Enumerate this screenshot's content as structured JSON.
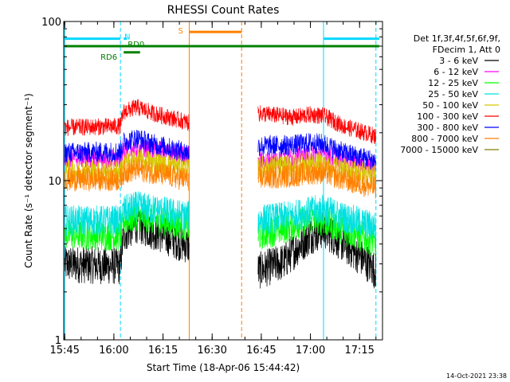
{
  "chart_data": {
    "type": "line",
    "title": "RHESSI Count Rates",
    "xlabel": "Start Time (18-Apr-06 15:44:42)",
    "ylabel": "Count Rate (s⁻¹ detector segment⁻¹)",
    "y_scale": "log",
    "ylim": [
      1,
      100
    ],
    "xlim": [
      "15:44:42",
      "17:22"
    ],
    "x_ticks": [
      "15:45",
      "16:00",
      "16:15",
      "16:30",
      "16:45",
      "17:00",
      "17:15"
    ],
    "y_ticks": [
      {
        "value": 1,
        "label": "1"
      },
      {
        "value": 10,
        "label": "10"
      },
      {
        "value": 100,
        "label": "100"
      }
    ],
    "grid": false,
    "legend_position": "right",
    "legend_header": [
      "Det 1f,3f,4f,5f,6f,9f,",
      "FDecim 1, Att 0"
    ],
    "data_gap": [
      "16:23",
      "16:44"
    ],
    "series": [
      {
        "name": "3 - 6 keV",
        "color": "#000000",
        "noise": 0.55,
        "points": [
          [
            "15:45",
            3.0
          ],
          [
            "16:02",
            2.9
          ],
          [
            "16:03",
            4.6
          ],
          [
            "16:07",
            5.3
          ],
          [
            "16:12",
            4.8
          ],
          [
            "16:20",
            4.1
          ],
          [
            "16:23",
            3.9
          ],
          [
            "16:44",
            2.7
          ],
          [
            "16:52",
            3.1
          ],
          [
            "17:00",
            4.5
          ],
          [
            "17:04",
            4.9
          ],
          [
            "17:10",
            4.0
          ],
          [
            "17:20",
            2.7
          ]
        ]
      },
      {
        "name": "6 - 12 keV",
        "color": "#ff00ff",
        "noise": 0.3,
        "points": [
          [
            "15:45",
            14.0
          ],
          [
            "16:02",
            13.5
          ],
          [
            "16:03",
            15.5
          ],
          [
            "16:07",
            16.0
          ],
          [
            "16:12",
            15.5
          ],
          [
            "16:20",
            14.5
          ],
          [
            "16:23",
            14.3
          ],
          [
            "16:44",
            13.2
          ],
          [
            "16:55",
            14.0
          ],
          [
            "17:00",
            14.5
          ],
          [
            "17:04",
            14.8
          ],
          [
            "17:10",
            13.5
          ],
          [
            "17:20",
            12.0
          ]
        ]
      },
      {
        "name": "12 - 25 keV",
        "color": "#00ff00",
        "noise": 0.45,
        "points": [
          [
            "15:45",
            4.6
          ],
          [
            "16:02",
            4.5
          ],
          [
            "16:03",
            5.6
          ],
          [
            "16:07",
            6.0
          ],
          [
            "16:12",
            5.7
          ],
          [
            "16:20",
            5.3
          ],
          [
            "16:23",
            5.1
          ],
          [
            "16:44",
            4.5
          ],
          [
            "16:52",
            5.0
          ],
          [
            "17:00",
            5.7
          ],
          [
            "17:04",
            5.6
          ],
          [
            "17:10",
            4.9
          ],
          [
            "17:20",
            4.1
          ]
        ]
      },
      {
        "name": "25 - 50 keV",
        "color": "#00e0e0",
        "noise": 0.45,
        "points": [
          [
            "15:45",
            5.6
          ],
          [
            "16:02",
            5.6
          ],
          [
            "16:03",
            6.5
          ],
          [
            "16:07",
            6.9
          ],
          [
            "16:12",
            6.6
          ],
          [
            "16:20",
            6.1
          ],
          [
            "16:23",
            6.0
          ],
          [
            "16:44",
            5.7
          ],
          [
            "16:52",
            5.9
          ],
          [
            "17:00",
            6.4
          ],
          [
            "17:04",
            6.6
          ],
          [
            "17:10",
            5.9
          ],
          [
            "17:20",
            5.1
          ]
        ]
      },
      {
        "name": "50 - 100 keV",
        "color": "#d8c800",
        "noise": 0.35,
        "points": [
          [
            "15:45",
            11.5
          ],
          [
            "16:02",
            11.5
          ],
          [
            "16:03",
            12.8
          ],
          [
            "16:07",
            13.5
          ],
          [
            "16:12",
            13.0
          ],
          [
            "16:20",
            12.3
          ],
          [
            "16:23",
            12.0
          ],
          [
            "16:44",
            12.0
          ],
          [
            "16:55",
            12.4
          ],
          [
            "17:00",
            12.8
          ],
          [
            "17:04",
            12.8
          ],
          [
            "17:10",
            11.8
          ],
          [
            "17:20",
            10.8
          ]
        ]
      },
      {
        "name": "100 - 300 keV",
        "color": "#ff0000",
        "noise": 0.25,
        "points": [
          [
            "15:45",
            21.5
          ],
          [
            "16:02",
            22.0
          ],
          [
            "16:03",
            27.0
          ],
          [
            "16:07",
            29.0
          ],
          [
            "16:12",
            26.5
          ],
          [
            "16:20",
            24.0
          ],
          [
            "16:23",
            23.0
          ],
          [
            "16:44",
            26.5
          ],
          [
            "16:55",
            25.0
          ],
          [
            "17:00",
            26.0
          ],
          [
            "17:04",
            25.5
          ],
          [
            "17:10",
            22.0
          ],
          [
            "17:20",
            19.0
          ]
        ]
      },
      {
        "name": "300 - 800 keV",
        "color": "#0000ff",
        "noise": 0.3,
        "points": [
          [
            "15:45",
            15.0
          ],
          [
            "16:02",
            15.2
          ],
          [
            "16:03",
            17.5
          ],
          [
            "16:07",
            18.5
          ],
          [
            "16:12",
            17.0
          ],
          [
            "16:20",
            15.5
          ],
          [
            "16:23",
            15.0
          ],
          [
            "16:44",
            16.5
          ],
          [
            "16:55",
            16.8
          ],
          [
            "17:00",
            17.3
          ],
          [
            "17:04",
            17.0
          ],
          [
            "17:10",
            15.0
          ],
          [
            "17:20",
            13.3
          ]
        ]
      },
      {
        "name": "800 - 7000 keV",
        "color": "#ff8000",
        "noise": 0.35,
        "points": [
          [
            "15:45",
            10.2
          ],
          [
            "16:02",
            10.2
          ],
          [
            "16:03",
            11.3
          ],
          [
            "16:07",
            11.8
          ],
          [
            "16:12",
            11.3
          ],
          [
            "16:20",
            10.4
          ],
          [
            "16:23",
            10.2
          ],
          [
            "16:44",
            10.4
          ],
          [
            "16:55",
            10.8
          ],
          [
            "17:00",
            11.2
          ],
          [
            "17:04",
            11.3
          ],
          [
            "17:10",
            10.2
          ],
          [
            "17:20",
            9.0
          ]
        ]
      },
      {
        "name": "7000 - 15000 keV",
        "color": "#808000",
        "noise": 0.0,
        "points": []
      }
    ],
    "markers": [
      {
        "time": "15:45",
        "style": "solid",
        "color": "#00d8ff"
      },
      {
        "time": "16:02",
        "style": "dashed",
        "color": "#00d8ff"
      },
      {
        "time": "16:23",
        "style": "solid",
        "color": "#ff8000"
      },
      {
        "time": "16:39",
        "style": "dashed",
        "color": "#ff8000"
      },
      {
        "time": "17:04",
        "style": "solid",
        "color": "#00d8ff"
      },
      {
        "time": "17:20",
        "style": "dashed",
        "color": "#00d8ff"
      }
    ],
    "flag_bars": [
      {
        "label": "N",
        "label_at": "16:02",
        "color": "#00d8ff",
        "level": 78,
        "segments": [
          [
            "15:45",
            "16:02"
          ],
          [
            "16:03",
            "16:04"
          ],
          [
            "17:04",
            "17:21"
          ]
        ]
      },
      {
        "label": "S",
        "label_at": "16:23",
        "color": "#ff8000",
        "level": 86,
        "segments": [
          [
            "16:23",
            "16:39"
          ]
        ]
      },
      {
        "label": "RD6",
        "label_at": "16:02",
        "color": "#008000",
        "level": 64,
        "segments": [
          [
            "16:03",
            "16:08"
          ]
        ]
      },
      {
        "label": "RD0",
        "label_at": "16:03",
        "color": "#008000",
        "level": 70,
        "segments": [
          [
            "15:45",
            "17:21"
          ]
        ]
      }
    ],
    "footer_timestamp": "14-Oct-2021 23:38"
  }
}
